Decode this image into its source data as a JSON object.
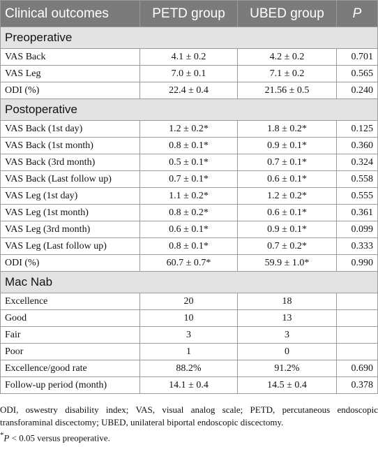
{
  "table": {
    "header": [
      "Clinical outcomes",
      "PETD group",
      "UBED group",
      "P"
    ],
    "sections": [
      {
        "title": "Preoperative",
        "rows": [
          [
            "VAS Back",
            "4.1 ± 0.2",
            "4.2 ± 0.2",
            "0.701"
          ],
          [
            "VAS Leg",
            "7.0 ± 0.1",
            "7.1 ± 0.2",
            "0.565"
          ],
          [
            "ODI (%)",
            "22.4 ± 0.4",
            "21.56 ± 0.5",
            "0.240"
          ]
        ]
      },
      {
        "title": "Postoperative",
        "rows": [
          [
            "VAS Back (1st day)",
            "1.2 ± 0.2*",
            "1.8 ± 0.2*",
            "0.125"
          ],
          [
            "VAS Back (1st month)",
            "0.8 ± 0.1*",
            "0.9 ± 0.1*",
            "0.360"
          ],
          [
            "VAS Back (3rd month)",
            "0.5 ± 0.1*",
            "0.7 ± 0.1*",
            "0.324"
          ],
          [
            "VAS Back (Last follow up)",
            "0.7 ± 0.1*",
            "0.6 ± 0.1*",
            "0.558"
          ],
          [
            "VAS Leg (1st day)",
            "1.1 ± 0.2*",
            "1.2 ± 0.2*",
            "0.555"
          ],
          [
            "VAS Leg (1st month)",
            "0.8 ± 0.2*",
            "0.6 ± 0.1*",
            "0.361"
          ],
          [
            "VAS Leg (3rd month)",
            "0.6 ± 0.1*",
            "0.9 ± 0.1*",
            "0.099"
          ],
          [
            "VAS Leg (Last follow up)",
            "0.8 ± 0.1*",
            "0.7 ± 0.2*",
            "0.333"
          ],
          [
            "ODI (%)",
            "60.7 ± 0.7*",
            "59.9 ± 1.0*",
            "0.990"
          ]
        ]
      },
      {
        "title": "Mac Nab",
        "rows": [
          [
            "Excellence",
            "20",
            "18",
            null
          ],
          [
            "Good",
            "10",
            "13",
            null
          ],
          [
            "Fair",
            "3",
            "3",
            null
          ],
          [
            "Poor",
            "1",
            "0",
            null
          ],
          [
            "Excellence/good rate",
            "88.2%",
            "91.2%",
            "0.690"
          ],
          [
            "Follow-up period (month)",
            "14.1 ± 0.4",
            "14.5 ± 0.4",
            "0.378"
          ]
        ]
      }
    ],
    "footnotes": [
      "ODI, oswestry disability index; VAS, visual analog scale; PETD, percutaneous endoscopic transforaminal discectomy; UBED, unilateral biportal endoscopic discectomy.",
      [
        "*",
        "P",
        " < 0.05 versus preoperative."
      ]
    ]
  }
}
